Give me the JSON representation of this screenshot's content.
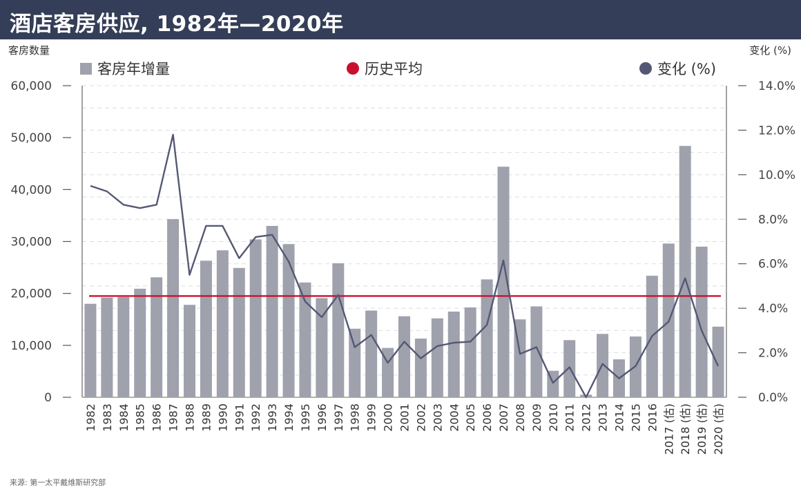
{
  "title": "酒店客房供应, 1982年—2020年",
  "left_axis_label": "客房数量",
  "right_axis_label": "变化 (%)",
  "legend": {
    "bars": "客房年增量",
    "average": "历史平均",
    "change": "变化 (%)"
  },
  "source": "来源: 第一太平戴维斯研究部",
  "colors": {
    "header_bg": "#353e58",
    "bar": "#9fa1ac",
    "average_line": "#c8102e",
    "change_line": "#545874"
  },
  "chart_data": {
    "type": "bar",
    "categories": [
      "1982",
      "1983",
      "1984",
      "1985",
      "1986",
      "1987",
      "1988",
      "1989",
      "1990",
      "1991",
      "1992",
      "1993",
      "1994",
      "1995",
      "1996",
      "1997",
      "1998",
      "1999",
      "2000",
      "2001",
      "2002",
      "2003",
      "2004",
      "2005",
      "2006",
      "2007",
      "2008",
      "2009",
      "2010",
      "2011",
      "2012",
      "2013",
      "2014",
      "2015",
      "2016",
      "2017 (估)",
      "2018 (估)",
      "2019 (估)",
      "2020 (估)"
    ],
    "series": [
      {
        "name": "客房年增量",
        "type": "bar",
        "axis": "left",
        "values": [
          18000,
          19200,
          19300,
          20900,
          23100,
          34300,
          17800,
          26300,
          28300,
          24900,
          30400,
          33000,
          29500,
          22100,
          19100,
          25800,
          13200,
          16700,
          9500,
          15600,
          11300,
          15200,
          16500,
          17300,
          22700,
          44400,
          15000,
          17500,
          5100,
          11000,
          500,
          12200,
          7300,
          11700,
          23400,
          29600,
          48400,
          29000,
          13600
        ]
      },
      {
        "name": "变化 (%)",
        "type": "line",
        "axis": "right",
        "values": [
          9.5,
          9.25,
          8.65,
          8.5,
          8.65,
          11.8,
          5.5,
          7.7,
          7.7,
          6.25,
          7.2,
          7.3,
          6.1,
          4.3,
          3.6,
          4.6,
          2.25,
          2.8,
          1.55,
          2.5,
          1.75,
          2.3,
          2.45,
          2.5,
          3.25,
          6.15,
          1.95,
          2.25,
          0.65,
          1.35,
          0.0,
          1.5,
          0.85,
          1.4,
          2.75,
          3.4,
          5.35,
          3.0,
          1.4
        ]
      },
      {
        "name": "历史平均",
        "type": "hline",
        "axis": "left",
        "value": 19500
      }
    ],
    "y_left": {
      "ylim": [
        0,
        60000
      ],
      "ticks": [
        "0",
        "10,000",
        "20,000",
        "30,000",
        "40,000",
        "50,000",
        "60,000"
      ]
    },
    "y_right": {
      "ylim": [
        0,
        14
      ],
      "ticks": [
        "0.0%",
        "2.0%",
        "4.0%",
        "6.0%",
        "8.0%",
        "10.0%",
        "12.0%",
        "14.0%"
      ]
    },
    "grid": true,
    "legend_position": "top"
  }
}
